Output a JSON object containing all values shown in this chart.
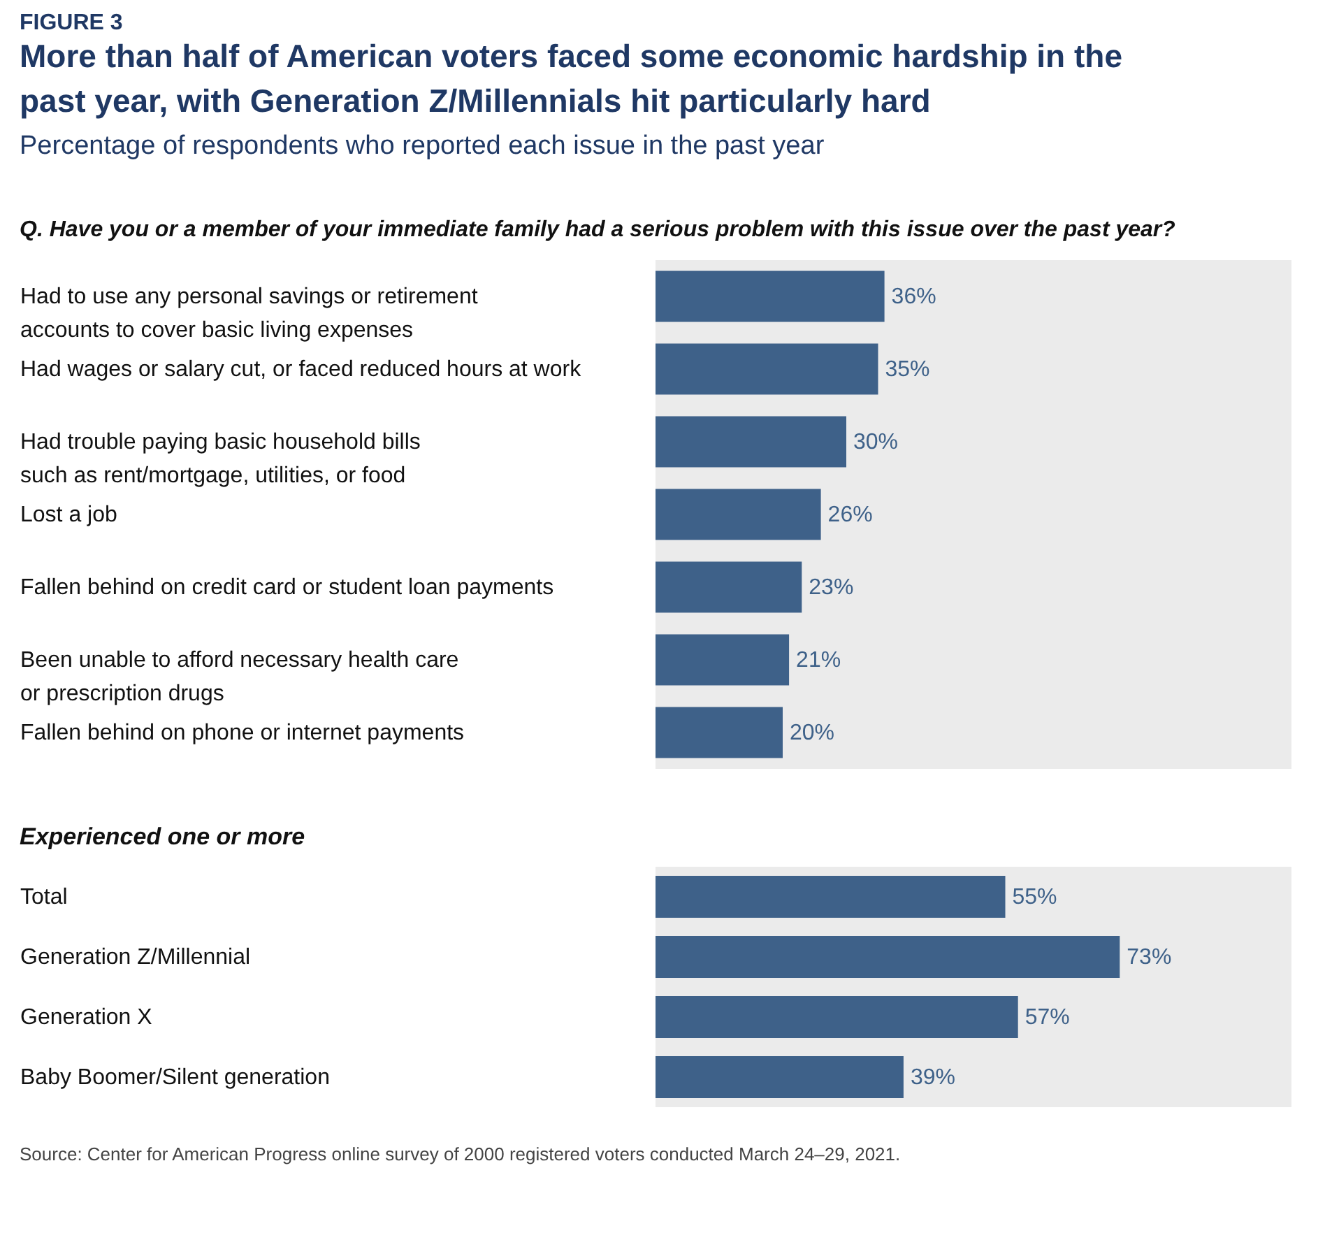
{
  "chart_data": [
    {
      "type": "bar",
      "orientation": "horizontal",
      "title": "More than half of American voters faced some economic hardship in the past year, with Generation Z/Millennials hit particularly hard",
      "subtitle": "Percentage of respondents who reported each issue in the past year",
      "annotations": [
        "FIGURE 3",
        "Q. Have you or a member of your immediate family had a serious problem with this issue over the past year?"
      ],
      "categories": [
        "Had to use any personal savings or retirement\naccounts to cover basic living expenses",
        "Had wages or salary cut, or faced reduced hours at work",
        "Had trouble paying basic household bills\nsuch as rent/mortgage, utilities, or food",
        "Lost a job",
        "Fallen behind on credit card or student loan payments",
        "Been unable to afford necessary health care\nor prescription drugs",
        "Fallen behind on phone or internet payments"
      ],
      "values": [
        36,
        35,
        30,
        26,
        23,
        21,
        20
      ],
      "value_labels": [
        "36%",
        "35%",
        "30%",
        "26%",
        "23%",
        "21%",
        "20%"
      ],
      "color": "#3e6189",
      "xlim": [
        0,
        100
      ],
      "tick_labels": "y"
    },
    {
      "type": "bar",
      "orientation": "horizontal",
      "title": "Experienced one or more",
      "annotations": [
        "Source: Center for American Progress online survey of 2000 registered voters conducted March 24–29, 2021."
      ],
      "categories": [
        "Total",
        "Generation Z/Millennial",
        "Generation X",
        "Baby Boomer/Silent generation"
      ],
      "values": [
        55,
        73,
        57,
        39
      ],
      "value_labels": [
        "55%",
        "73%",
        "57%",
        "39%"
      ],
      "color": "#3e6189",
      "xlim": [
        0,
        100
      ],
      "tick_labels": "y"
    }
  ]
}
